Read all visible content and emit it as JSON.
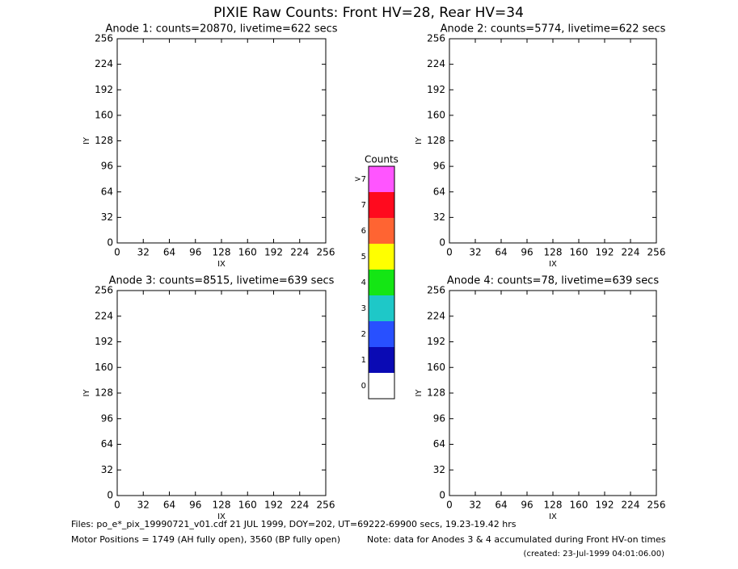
{
  "title": "PIXIE Raw Counts:  Front HV=28, Rear HV=34",
  "panels": [
    {
      "title": "Anode 1: counts=20870, livetime=622 secs",
      "xlabel": "IX",
      "ylabel": "IY",
      "xlim": [
        0,
        256
      ],
      "ylim": [
        0,
        256
      ],
      "xticks": [
        0,
        32,
        64,
        96,
        128,
        160,
        192,
        224,
        256
      ],
      "yticks": [
        0,
        32,
        64,
        96,
        128,
        160,
        192,
        224,
        256
      ]
    },
    {
      "title": "Anode 2: counts=5774, livetime=622 secs",
      "xlabel": "IX",
      "ylabel": "IY",
      "xlim": [
        0,
        256
      ],
      "ylim": [
        0,
        256
      ],
      "xticks": [
        0,
        32,
        64,
        96,
        128,
        160,
        192,
        224,
        256
      ],
      "yticks": [
        0,
        32,
        64,
        96,
        128,
        160,
        192,
        224,
        256
      ]
    },
    {
      "title": "Anode 3: counts=8515, livetime=639 secs",
      "xlabel": "IX",
      "ylabel": "IY",
      "xlim": [
        0,
        256
      ],
      "ylim": [
        0,
        256
      ],
      "xticks": [
        0,
        32,
        64,
        96,
        128,
        160,
        192,
        224,
        256
      ],
      "yticks": [
        0,
        32,
        64,
        96,
        128,
        160,
        192,
        224,
        256
      ]
    },
    {
      "title": "Anode 4: counts=78, livetime=639 secs",
      "xlabel": "IX",
      "ylabel": "IY",
      "xlim": [
        0,
        256
      ],
      "ylim": [
        0,
        256
      ],
      "xticks": [
        0,
        32,
        64,
        96,
        128,
        160,
        192,
        224,
        256
      ],
      "yticks": [
        0,
        32,
        64,
        96,
        128,
        160,
        192,
        224,
        256
      ]
    }
  ],
  "colorbar": {
    "title": "Counts",
    "levels": [
      {
        "label": "0",
        "color": "#ffffff"
      },
      {
        "label": "1",
        "color": "#0a0ab4"
      },
      {
        "label": "2",
        "color": "#2850ff"
      },
      {
        "label": "3",
        "color": "#1ec8c8"
      },
      {
        "label": "4",
        "color": "#14e614"
      },
      {
        "label": "5",
        "color": "#ffff00"
      },
      {
        "label": "6",
        "color": "#ff6432"
      },
      {
        "label": "7",
        "color": "#ff0a1e"
      },
      {
        "label": ">7",
        "color": "#ff55ff"
      }
    ]
  },
  "footer": {
    "files": "Files: po_e*_pix_19990721_v01.cdf   21 JUL 1999, DOY=202, UT=69222-69900 secs, 19.23-19.42 hrs",
    "motor": "Motor Positions = 1749 (AH fully open), 3560 (BP fully open)",
    "note": "Note: data for Anodes 3 & 4 accumulated during Front HV-on times",
    "created": "(created: 23-Jul-1999 04:01:06.00)"
  }
}
